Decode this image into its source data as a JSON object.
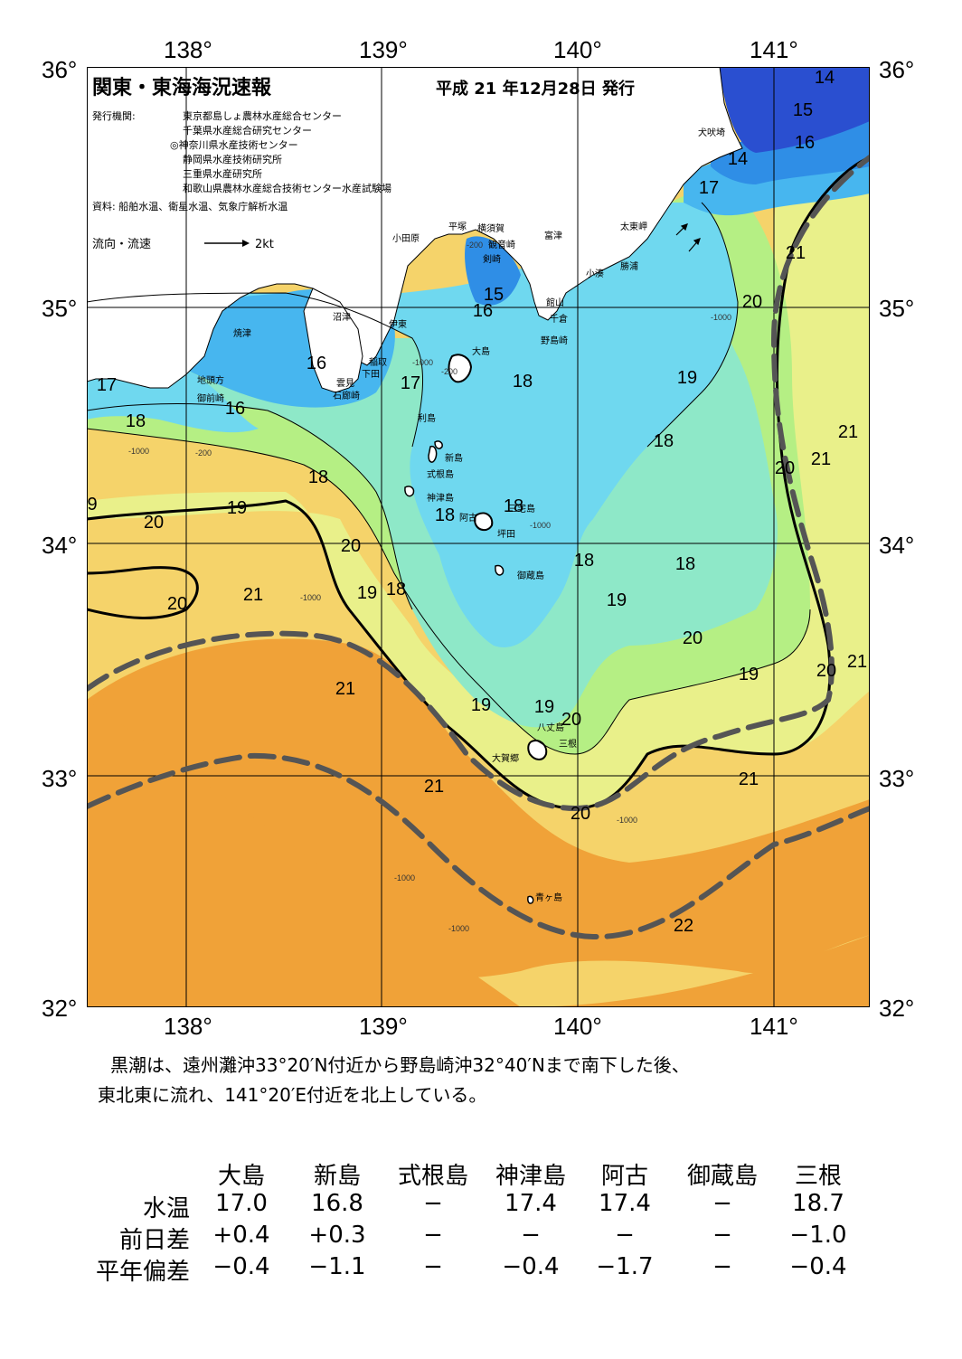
{
  "map": {
    "title": "関東・東海海況速報",
    "issue_date": "平成 21 年12月28日 発行",
    "publisher_label": "発行機関:",
    "publishers": [
      "東京都島しょ農林水産総合センター",
      "千葉県水産総合研究センター",
      "◎神奈川県水産技術センター",
      "静岡県水産技術研究所",
      "三重県水産研究所",
      "和歌山県農林水産総合技術センター水産試験場"
    ],
    "source": "資料: 船舶水温、衛星水温、気象庁解析水温",
    "legend_flow": "流向・流速",
    "legend_speed": "2kt",
    "lon_labels": [
      "138°",
      "139°",
      "140°",
      "141°"
    ],
    "lat_labels": [
      "36°",
      "35°",
      "34°",
      "33°",
      "32°"
    ],
    "place_names": [
      "犬吠埼",
      "太東岬",
      "勝浦",
      "小湊",
      "富津",
      "横須賀",
      "観音崎",
      "剣崎",
      "平塚",
      "小田原",
      "館山",
      "千倉",
      "野島崎",
      "沼津",
      "伊東",
      "焼津",
      "稲取",
      "下田",
      "雲見",
      "石廊崎",
      "地頭方",
      "御前崎",
      "大島",
      "利島",
      "新島",
      "式根島",
      "神津島",
      "三宅島",
      "阿古",
      "坪田",
      "御蔵島",
      "八丈島",
      "三根",
      "大賀郷",
      "青ヶ島"
    ],
    "isotherm_labels": [
      "14",
      "15",
      "16",
      "17",
      "18",
      "19",
      "20",
      "21",
      "22"
    ],
    "depth_labels": [
      "-200",
      "-1000"
    ],
    "kuroshio_description": "Kuroshio axis shown as dashed line"
  },
  "summary": {
    "line1": "黒潮は、遠州灘沖33°20′N付近から野島崎沖32°40′Nまで南下した後、",
    "line2": "東北東に流れ、141°20′E付近を北上している。"
  },
  "table": {
    "columns": [
      "大島",
      "新島",
      "式根島",
      "神津島",
      "阿古",
      "御蔵島",
      "三根"
    ],
    "rows": [
      {
        "label": "水温",
        "values": [
          "17.0",
          "16.8",
          "−",
          "17.4",
          "17.4",
          "−",
          "18.7"
        ]
      },
      {
        "label": "前日差",
        "values": [
          "+0.4",
          "+0.3",
          "−",
          "−",
          "−",
          "−",
          "−1.0"
        ]
      },
      {
        "label": "平年偏差",
        "values": [
          "−0.4",
          "−1.1",
          "−",
          "−0.4",
          "−1.7",
          "−",
          "−0.4"
        ]
      }
    ]
  },
  "colors": {
    "t14": "#2a4fd0",
    "t15": "#2f8ee6",
    "t16": "#47b6ef",
    "t17": "#6fd8ef",
    "t18": "#8ee8c8",
    "t19": "#b5ef84",
    "t20": "#e9f08a",
    "t21": "#f5d36a",
    "t22": "#f0a238",
    "land": "#ffffff",
    "kuroshio": "#555555"
  }
}
